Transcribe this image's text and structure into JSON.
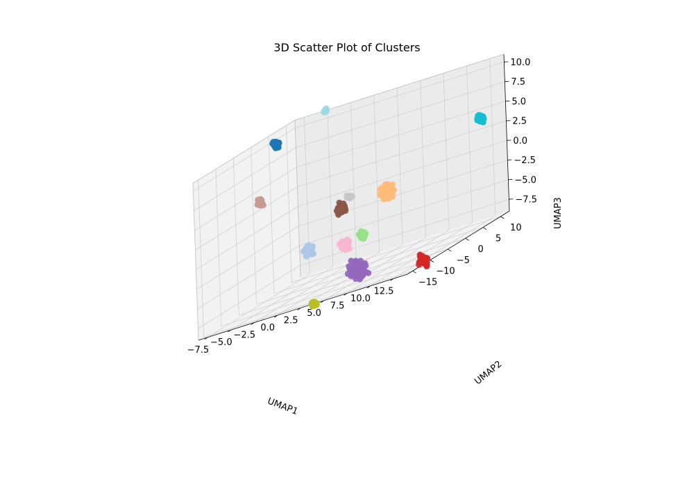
{
  "chart_data": {
    "type": "scatter",
    "projection": "3d",
    "title": "3D Scatter Plot of Clusters",
    "xlabel": "UMAP1",
    "ylabel": "UMAP2",
    "zlabel": "UMAP3",
    "xlim": [
      -8.5,
      14.0
    ],
    "ylim": [
      -16.5,
      12.5
    ],
    "zlim": [
      -9.0,
      11.0
    ],
    "xticks": [
      "−7.5",
      "−5.0",
      "−2.5",
      "0.0",
      "2.5",
      "5.0",
      "7.5",
      "10.0",
      "12.5"
    ],
    "yticks": [
      "−15",
      "−10",
      "−5",
      "0",
      "5",
      "10"
    ],
    "zticks": [
      "−7.5",
      "−5.0",
      "−2.5",
      "0.0",
      "2.5",
      "5.0",
      "7.5",
      "10.0"
    ],
    "grid": true,
    "legend": "none",
    "colormap": "tab20",
    "series": [
      {
        "color": "#1f77b4",
        "x": -7.0,
        "y": 3.0,
        "z": 10.0,
        "spread": 0.6
      },
      {
        "color": "#9edae5",
        "x": -5.0,
        "y": 12.0,
        "z": 11.0,
        "spread": 0.3
      },
      {
        "color": "#17becf",
        "x": 13.0,
        "y": 8.0,
        "z": 4.5,
        "spread": 0.6
      },
      {
        "color": "#c49c94",
        "x": -6.5,
        "y": -3.0,
        "z": 4.0,
        "spread": 0.6
      },
      {
        "color": "#ffbb78",
        "x": 3.0,
        "y": 7.5,
        "z": -1.0,
        "spread": 1.2
      },
      {
        "color": "#8c564b",
        "x": -1.0,
        "y": 5.0,
        "z": -1.0,
        "spread": 0.8
      },
      {
        "color": "#c7c7c7",
        "x": -0.5,
        "y": 6.0,
        "z": 0.0,
        "spread": 0.4
      },
      {
        "color": "#aec7e8",
        "x": -3.5,
        "y": 2.0,
        "z": -4.5,
        "spread": 0.8
      },
      {
        "color": "#f7b6d2",
        "x": 0.0,
        "y": 3.0,
        "z": -5.5,
        "spread": 0.8
      },
      {
        "color": "#98df8a",
        "x": 1.5,
        "y": 4.0,
        "z": -5.0,
        "spread": 0.6
      },
      {
        "color": "#9467bd",
        "x": 1.5,
        "y": 2.0,
        "z": -9.0,
        "spread": 1.6
      },
      {
        "color": "#bcbd22",
        "x": -1.5,
        "y": -2.0,
        "z": -11.0,
        "spread": 0.5
      },
      {
        "color": "#d62728",
        "x": 8.5,
        "y": 2.5,
        "z": -10.5,
        "spread": 0.9
      }
    ]
  }
}
